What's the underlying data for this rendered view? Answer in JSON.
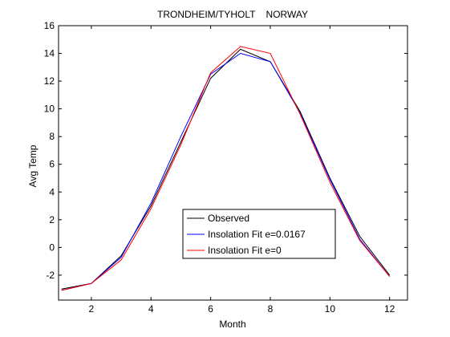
{
  "chart_data": {
    "type": "line",
    "title": "TRONDHEIM/TYHOLT    NORWAY",
    "xlabel": "Month",
    "ylabel": "Avg Temp",
    "xlim": [
      0.9,
      12.6
    ],
    "ylim": [
      -3.8,
      16
    ],
    "x_ticks": [
      2,
      4,
      6,
      8,
      10,
      12
    ],
    "y_ticks": [
      -2,
      0,
      2,
      4,
      6,
      8,
      10,
      12,
      14,
      16
    ],
    "grid": false,
    "legend_position": "lower-center",
    "x": [
      1,
      2,
      3,
      4,
      5,
      6,
      7,
      8,
      9,
      10,
      11,
      12
    ],
    "series": [
      {
        "name": "Observed",
        "color": "#000000",
        "values": [
          -3.0,
          -2.6,
          -0.6,
          3.0,
          7.6,
          12.2,
          14.3,
          13.4,
          9.8,
          5.0,
          0.8,
          -2.0
        ]
      },
      {
        "name": "Insolation Fit e=0.0167",
        "color": "#0000ff",
        "values": [
          -3.1,
          -2.6,
          -0.7,
          3.2,
          8.0,
          12.5,
          14.0,
          13.4,
          9.7,
          4.9,
          0.6,
          -2.1
        ]
      },
      {
        "name": "Insolation Fit e=0",
        "color": "#ff0000",
        "values": [
          -3.1,
          -2.6,
          -0.9,
          2.8,
          7.4,
          12.6,
          14.5,
          14.0,
          9.6,
          4.7,
          0.5,
          -2.1
        ]
      }
    ]
  }
}
